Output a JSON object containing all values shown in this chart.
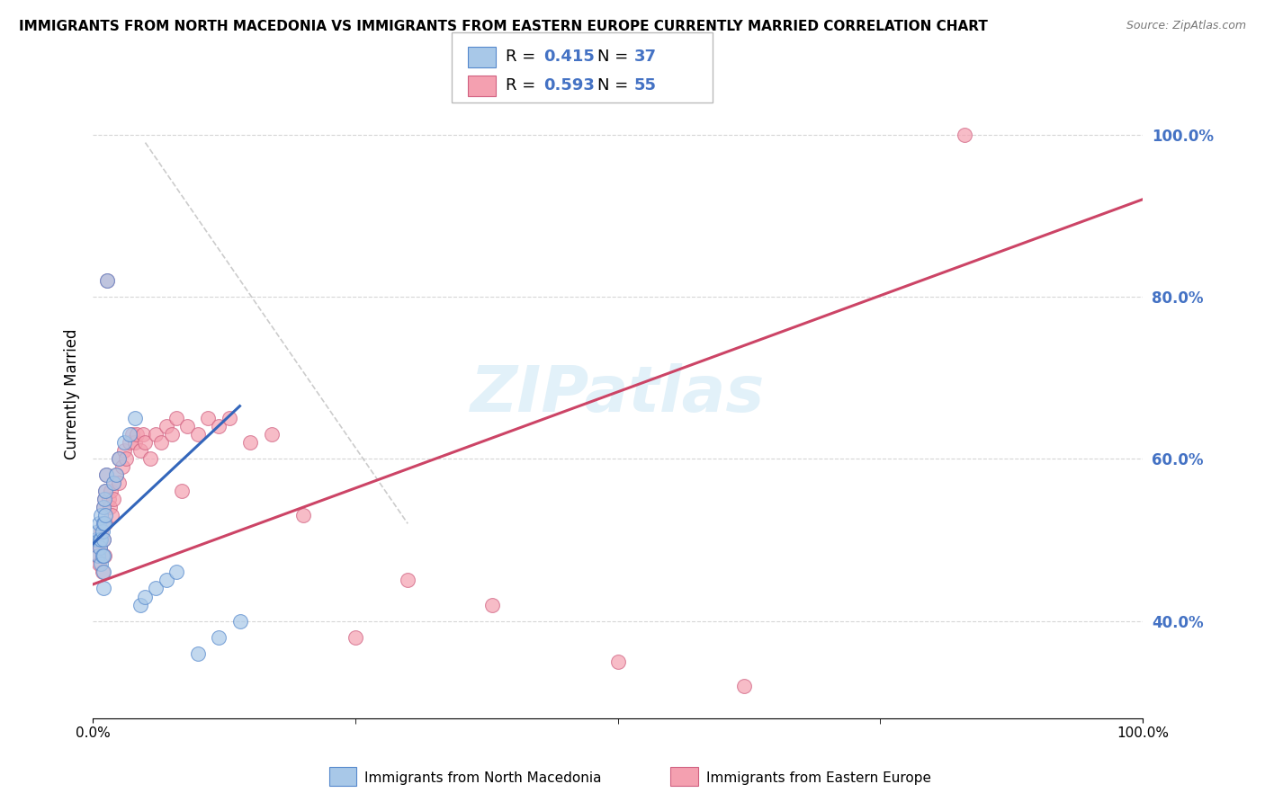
{
  "title": "IMMIGRANTS FROM NORTH MACEDONIA VS IMMIGRANTS FROM EASTERN EUROPE CURRENTLY MARRIED CORRELATION CHART",
  "source": "Source: ZipAtlas.com",
  "ylabel": "Currently Married",
  "xlim": [
    0.0,
    1.0
  ],
  "ylim": [
    0.28,
    1.08
  ],
  "y_tick_positions": [
    0.4,
    0.6,
    0.8,
    1.0
  ],
  "legend_label1": "Immigrants from North Macedonia",
  "legend_label2": "Immigrants from Eastern Europe",
  "R1": 0.415,
  "N1": 37,
  "R2": 0.593,
  "N2": 55,
  "color1": "#a8c8e8",
  "color2": "#f4a0b0",
  "edge_color1": "#5588cc",
  "edge_color2": "#d06080",
  "line_color1": "#3366bb",
  "line_color2": "#cc4466",
  "blue_line_x": [
    0.0,
    0.14
  ],
  "blue_line_y": [
    0.495,
    0.665
  ],
  "pink_line_x": [
    0.0,
    1.0
  ],
  "pink_line_y": [
    0.445,
    0.92
  ],
  "diag_line_x": [
    0.05,
    0.3
  ],
  "diag_line_y": [
    0.99,
    0.52
  ],
  "scatter1_x": [
    0.003,
    0.005,
    0.005,
    0.006,
    0.007,
    0.007,
    0.008,
    0.008,
    0.008,
    0.009,
    0.009,
    0.01,
    0.01,
    0.01,
    0.01,
    0.01,
    0.01,
    0.011,
    0.011,
    0.012,
    0.012,
    0.013,
    0.014,
    0.02,
    0.022,
    0.025,
    0.03,
    0.035,
    0.04,
    0.045,
    0.05,
    0.06,
    0.07,
    0.08,
    0.1,
    0.12,
    0.14
  ],
  "scatter1_y": [
    0.5,
    0.51,
    0.48,
    0.52,
    0.5,
    0.49,
    0.53,
    0.5,
    0.47,
    0.51,
    0.48,
    0.54,
    0.52,
    0.5,
    0.48,
    0.46,
    0.44,
    0.55,
    0.52,
    0.56,
    0.53,
    0.58,
    0.82,
    0.57,
    0.58,
    0.6,
    0.62,
    0.63,
    0.65,
    0.42,
    0.43,
    0.44,
    0.45,
    0.46,
    0.36,
    0.38,
    0.4
  ],
  "scatter2_x": [
    0.003,
    0.005,
    0.006,
    0.007,
    0.008,
    0.009,
    0.01,
    0.01,
    0.01,
    0.011,
    0.011,
    0.012,
    0.012,
    0.013,
    0.014,
    0.015,
    0.016,
    0.017,
    0.018,
    0.02,
    0.02,
    0.022,
    0.025,
    0.025,
    0.028,
    0.03,
    0.032,
    0.035,
    0.038,
    0.04,
    0.042,
    0.045,
    0.048,
    0.05,
    0.055,
    0.06,
    0.065,
    0.07,
    0.075,
    0.08,
    0.085,
    0.09,
    0.1,
    0.11,
    0.12,
    0.13,
    0.15,
    0.17,
    0.2,
    0.25,
    0.3,
    0.38,
    0.5,
    0.62,
    0.83
  ],
  "scatter2_y": [
    0.5,
    0.48,
    0.47,
    0.49,
    0.51,
    0.46,
    0.54,
    0.52,
    0.5,
    0.55,
    0.48,
    0.56,
    0.52,
    0.58,
    0.82,
    0.55,
    0.54,
    0.56,
    0.53,
    0.57,
    0.55,
    0.58,
    0.6,
    0.57,
    0.59,
    0.61,
    0.6,
    0.62,
    0.63,
    0.62,
    0.63,
    0.61,
    0.63,
    0.62,
    0.6,
    0.63,
    0.62,
    0.64,
    0.63,
    0.65,
    0.56,
    0.64,
    0.63,
    0.65,
    0.64,
    0.65,
    0.62,
    0.63,
    0.53,
    0.38,
    0.45,
    0.42,
    0.35,
    0.32,
    1.0
  ]
}
